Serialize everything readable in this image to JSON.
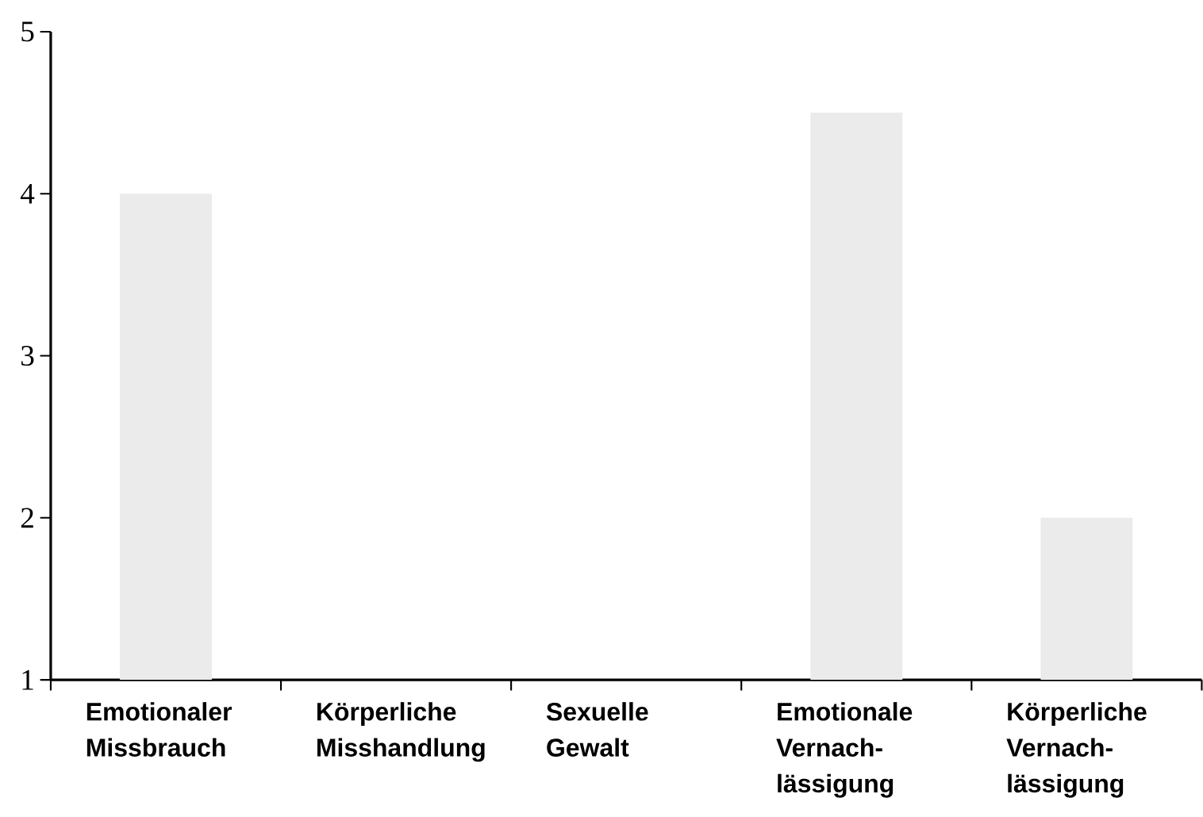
{
  "chart_data": {
    "type": "bar",
    "categories": [
      "Emotionaler Missbrauch",
      "Körperliche Misshandlung",
      "Sexuelle Gewalt",
      "Emotionale Vernach-lässigung",
      "Körperliche Vernach-lässigung"
    ],
    "values": [
      4,
      1,
      1,
      4.5,
      2
    ],
    "color": "#ebebeb",
    "ylim": [
      1,
      5
    ],
    "yticks": [
      1,
      2,
      3,
      4,
      5
    ],
    "grid": false
  }
}
